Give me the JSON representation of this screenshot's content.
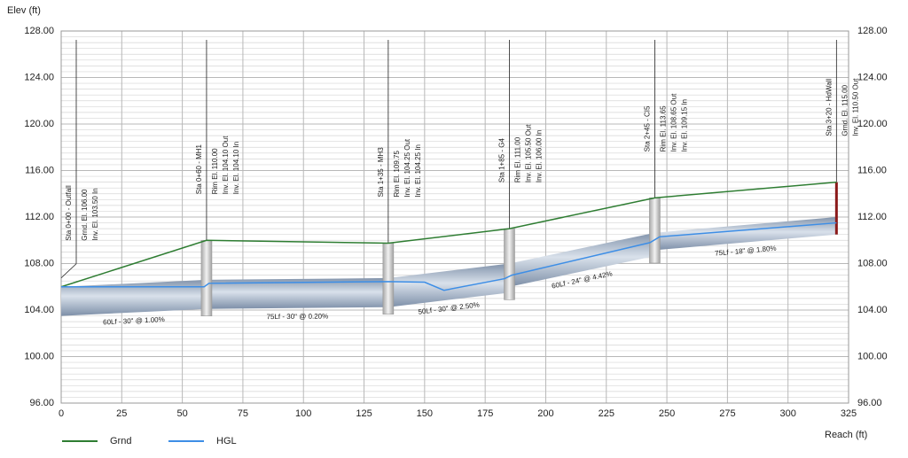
{
  "chart_data": {
    "type": "profile",
    "ylabel": "Elev (ft)",
    "xlabel": "Reach (ft)",
    "xlim": [
      0,
      325
    ],
    "xticks": [
      0,
      25,
      50,
      75,
      100,
      125,
      150,
      175,
      200,
      225,
      250,
      275,
      300,
      325
    ],
    "ylim": [
      96,
      128
    ],
    "yticks": [
      {
        "value": 96,
        "label": "96.00"
      },
      {
        "value": 100,
        "label": "100.00"
      },
      {
        "value": 104,
        "label": "104.00"
      },
      {
        "value": 108,
        "label": "108.00"
      },
      {
        "value": 112,
        "label": "112.00"
      },
      {
        "value": 116,
        "label": "116.00"
      },
      {
        "value": 120,
        "label": "120.00"
      },
      {
        "value": 124,
        "label": "124.00"
      },
      {
        "value": 128,
        "label": "128.00"
      }
    ],
    "grid": true,
    "minor_grid_step": 0.5,
    "legend": "bottom-left",
    "series": [
      {
        "name": "Grnd",
        "color": "#2e7d32",
        "x": [
          0,
          60,
          135,
          185,
          245,
          320
        ],
        "values": [
          106.0,
          110.0,
          109.75,
          111.0,
          113.65,
          115.0
        ]
      },
      {
        "name": "HGL",
        "color": "#3d8ee6",
        "x": [
          0,
          59,
          61,
          135,
          150,
          158,
          183,
          186,
          243,
          247,
          320
        ],
        "values": [
          106.0,
          106.0,
          106.3,
          106.45,
          106.4,
          105.7,
          106.7,
          107.0,
          109.8,
          110.3,
          111.5
        ]
      }
    ],
    "pipes": [
      {
        "label": "60Lf - 30\" @ 1.00%",
        "x": [
          0,
          60
        ],
        "inverts": [
          103.5,
          104.1
        ],
        "crowns": [
          106.0,
          106.6
        ]
      },
      {
        "label": "75Lf - 30\" @ 0.20%",
        "x": [
          60,
          135
        ],
        "inverts": [
          104.1,
          104.25
        ],
        "crowns": [
          106.6,
          106.75
        ]
      },
      {
        "label": "50Lf - 30\" @ 2.50%",
        "x": [
          135,
          185
        ],
        "inverts": [
          104.25,
          105.5
        ],
        "crowns": [
          106.75,
          108.0
        ]
      },
      {
        "label": "60Lf - 24\" @ 4.42%",
        "x": [
          185,
          245
        ],
        "inverts": [
          106.0,
          108.65
        ],
        "crowns": [
          108.0,
          110.65
        ]
      },
      {
        "label": "75Lf - 18\" @ 1.80%",
        "x": [
          245,
          320
        ],
        "inverts": [
          109.15,
          110.5
        ],
        "crowns": [
          110.65,
          112.0
        ]
      }
    ],
    "structures": [
      {
        "kind": "outfall",
        "station": 0,
        "rim": 106.0,
        "invert": 103.5,
        "lines": [
          "Sta 0+00 - Outfall",
          "Grnd. El. 106.00",
          "Inv. El. 103.50 In"
        ]
      },
      {
        "kind": "manhole",
        "station": 60,
        "rim": 110.0,
        "invert": 104.1,
        "lines": [
          "Sta 0+60 - MH1",
          "Rim El. 110.00",
          "Inv. El. 104.10 Out",
          "Inv. El. 104.10 In"
        ]
      },
      {
        "kind": "manhole",
        "station": 135,
        "rim": 109.75,
        "invert": 104.25,
        "lines": [
          "Sta 1+35 - MH3",
          "Rim El. 109.75",
          "Inv. El. 104.25 Out",
          "Inv. El. 104.25 In"
        ]
      },
      {
        "kind": "manhole",
        "station": 185,
        "rim": 111.0,
        "invert": 105.5,
        "lines": [
          "Sta 1+85 - G4",
          "Rim El. 111.00",
          "Inv. El. 105.50 Out",
          "Inv. El. 106.00 In"
        ]
      },
      {
        "kind": "manhole",
        "station": 245,
        "rim": 113.65,
        "invert": 108.65,
        "lines": [
          "Sta 2+45 - CI5",
          "Rim El. 113.65",
          "Inv. El. 108.65 Out",
          "Inv. El. 109.15 In"
        ]
      },
      {
        "kind": "headwall",
        "station": 320,
        "rim": 115.0,
        "invert": 110.5,
        "lines": [
          "Sta 3+20 - HdWall",
          "Grnd. El. 115.00",
          "Inv. El. 110.50 Out"
        ]
      }
    ]
  }
}
